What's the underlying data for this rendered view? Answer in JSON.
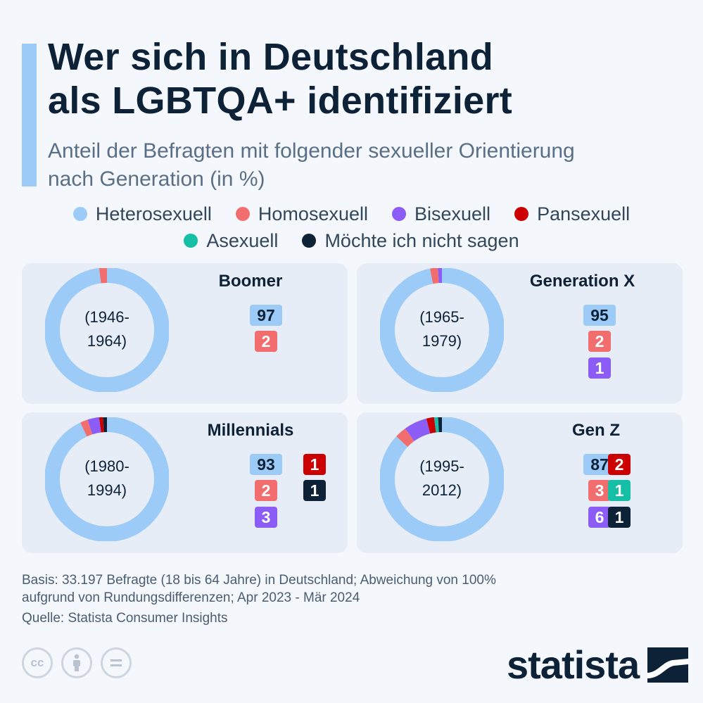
{
  "title": {
    "line1": "Wer sich in Deutschland",
    "line2": "als LGBTQA+ identifiziert"
  },
  "subtitle": {
    "line1": "Anteil der Befragten mit folgender sexueller Orientierung",
    "line2": "nach Generation (in %)"
  },
  "legend": [
    {
      "label": "Heterosexuell",
      "color": "#9ccbf7"
    },
    {
      "label": "Homosexuell",
      "color": "#f26d6d"
    },
    {
      "label": "Bisexuell",
      "color": "#8b5cf6"
    },
    {
      "label": "Pansexuell",
      "color": "#cc0000"
    },
    {
      "label": "Asexuell",
      "color": "#14bfa6"
    },
    {
      "label": "Möchte ich nicht sagen",
      "color": "#0d2137"
    }
  ],
  "chart_data": {
    "type": "pie",
    "variant": "donut",
    "title": "Wer sich in Deutschland als LGBTQA+ identifiziert",
    "series_names": [
      "Heterosexuell",
      "Homosexuell",
      "Bisexuell",
      "Pansexuell",
      "Asexuell",
      "Möchte ich nicht sagen"
    ],
    "generations": [
      {
        "name": "Boomer",
        "years_line1": "(1946-",
        "years_line2": "1964)",
        "values": {
          "Heterosexuell": 97,
          "Homosexuell": 2
        }
      },
      {
        "name": "Generation X",
        "years_line1": "(1965-",
        "years_line2": "1979)",
        "values": {
          "Heterosexuell": 95,
          "Homosexuell": 2,
          "Bisexuell": 1
        }
      },
      {
        "name": "Millennials",
        "years_line1": "(1980-",
        "years_line2": "1994)",
        "values": {
          "Heterosexuell": 93,
          "Homosexuell": 2,
          "Bisexuell": 3,
          "Pansexuell": 1,
          "Möchte ich nicht sagen": 1
        }
      },
      {
        "name": "Gen Z",
        "years_line1": "(1995-",
        "years_line2": "2012)",
        "values": {
          "Heterosexuell": 87,
          "Homosexuell": 3,
          "Bisexuell": 6,
          "Pansexuell": 2,
          "Asexuell": 1,
          "Möchte ich nicht sagen": 1
        }
      }
    ]
  },
  "footnote": {
    "line1": "Basis: 33.197 Befragte (18 bis 64 Jahre) in Deutschland; Abweichung von 100%",
    "line2": "aufgrund von Rundungsdifferenzen; Apr 2023 - Mär 2024"
  },
  "source": "Quelle: Statista Consumer Insights",
  "license_icons": {
    "cc": "cc-icon",
    "by": "person-icon",
    "nd": "equals-icon"
  },
  "logo": {
    "text": "statista"
  }
}
